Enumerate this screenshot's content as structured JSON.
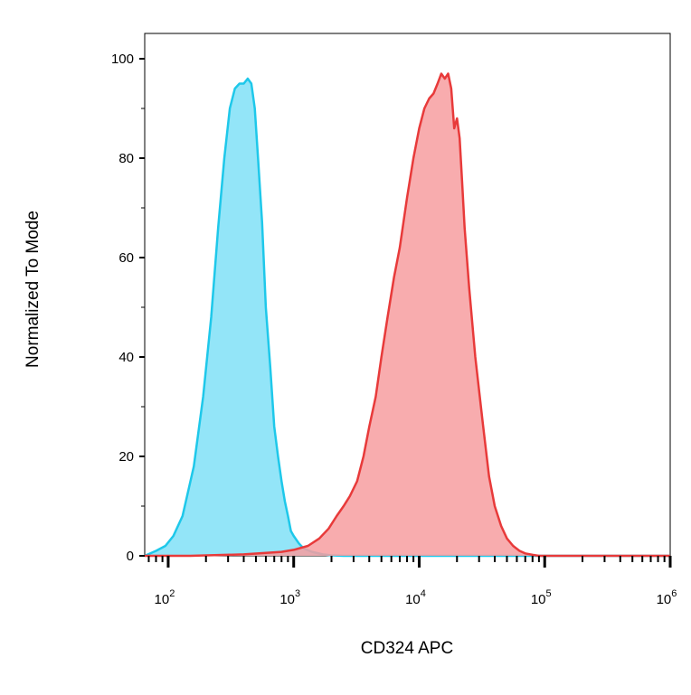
{
  "chart_data": {
    "type": "area",
    "title": "",
    "xlabel": "CD324 APC",
    "ylabel": "Normalized To Mode",
    "x_scale": "log",
    "xlim": [
      65,
      1000000
    ],
    "ylim": [
      0,
      105
    ],
    "x_ticks": [
      {
        "value": 100,
        "base": "10",
        "exp": "2"
      },
      {
        "value": 1000,
        "base": "10",
        "exp": "3"
      },
      {
        "value": 10000,
        "base": "10",
        "exp": "4"
      },
      {
        "value": 100000,
        "base": "10",
        "exp": "5"
      },
      {
        "value": 1000000,
        "base": "10",
        "exp": "6"
      }
    ],
    "y_ticks": [
      0,
      20,
      40,
      60,
      80,
      100
    ],
    "grid": false,
    "legend": "none",
    "series": [
      {
        "color": "#1ec8ea",
        "fill": "#80e1f7",
        "x": [
          65,
          80,
          95,
          110,
          130,
          160,
          190,
          220,
          250,
          280,
          310,
          340,
          370,
          400,
          430,
          460,
          490,
          520,
          560,
          600,
          650,
          700,
          750,
          800,
          850,
          900,
          950,
          1000,
          1100,
          1200,
          1400,
          1700,
          2000,
          2500,
          3000,
          5000,
          10000,
          100000,
          1000000
        ],
        "y": [
          0,
          1,
          2,
          4,
          8,
          18,
          32,
          48,
          66,
          80,
          90,
          94,
          95,
          95,
          96,
          95,
          90,
          80,
          67,
          50,
          38,
          26,
          20,
          15,
          11,
          8,
          5,
          4,
          2.5,
          1.5,
          0.8,
          0.3,
          0.1,
          0,
          0,
          0,
          0,
          0,
          0
        ]
      },
      {
        "color": "#e83a3a",
        "fill": "#f79ea0",
        "x": [
          65,
          150,
          400,
          800,
          1000,
          1300,
          1600,
          1900,
          2200,
          2500,
          2800,
          3200,
          3600,
          4000,
          4500,
          5000,
          5600,
          6300,
          7000,
          8000,
          9000,
          10000,
          11000,
          12000,
          13000,
          14000,
          15000,
          16000,
          17000,
          18000,
          19000,
          20000,
          21000,
          22000,
          23000,
          25000,
          28000,
          32000,
          36000,
          40000,
          45000,
          50000,
          56000,
          63000,
          70000,
          80000,
          90000,
          100000,
          200000,
          1000000
        ],
        "y": [
          0,
          0,
          0.3,
          0.8,
          1.2,
          2,
          3.5,
          5.5,
          8,
          10,
          12,
          15,
          20,
          26,
          32,
          40,
          48,
          56,
          62,
          72,
          80,
          86,
          90,
          92,
          93,
          95,
          97,
          96,
          97,
          94,
          86,
          88,
          84,
          75,
          66,
          54,
          40,
          27,
          16,
          10,
          6,
          3.5,
          2,
          1,
          0.5,
          0.2,
          0,
          0,
          0,
          0
        ]
      }
    ]
  }
}
